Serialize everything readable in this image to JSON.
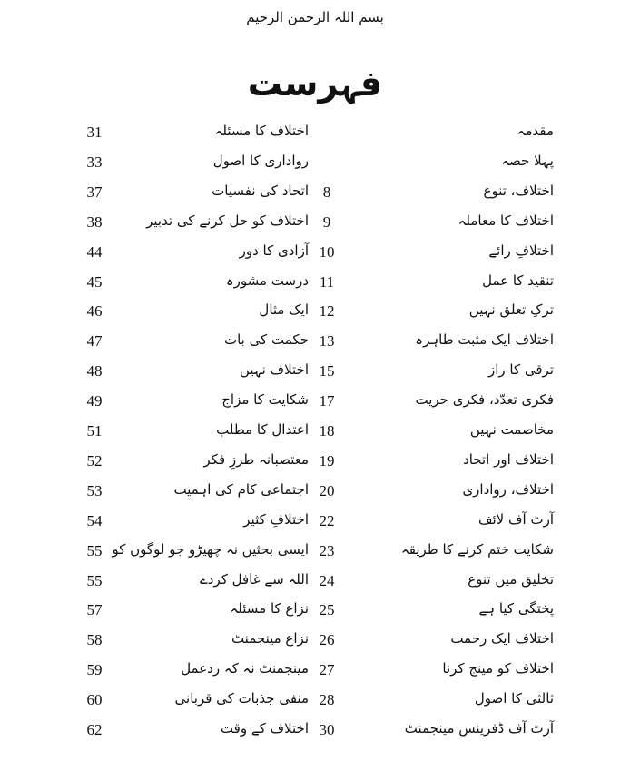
{
  "header": {
    "bismillah": "بسم اللہ الرحمن الرحیم",
    "title": "فہرست"
  },
  "rows": [
    {
      "right_title": "مقدمہ",
      "right_page": "",
      "left_title": "اختلاف کا مسئلہ",
      "left_page": "31"
    },
    {
      "right_title": "پہلا حصہ",
      "right_page": "",
      "left_title": "رواداری کا اصول",
      "left_page": "33"
    },
    {
      "right_title": "اختلاف، تنوع",
      "right_page": "8",
      "left_title": "اتحاد کی نفسیات",
      "left_page": "37"
    },
    {
      "right_title": "اختلاف کا معاملہ",
      "right_page": "9",
      "left_title": "اختلاف کو حل کرنے کی تدبیر",
      "left_page": "38"
    },
    {
      "right_title": "اختلافِ رائے",
      "right_page": "10",
      "left_title": "آزادی کا دور",
      "left_page": "44"
    },
    {
      "right_title": "تنقید کا عمل",
      "right_page": "11",
      "left_title": "درست مشورہ",
      "left_page": "45"
    },
    {
      "right_title": "ترکِ تعلق نہیں",
      "right_page": "12",
      "left_title": "ایک مثال",
      "left_page": "46"
    },
    {
      "right_title": "اختلاف ایک مثبت ظاہرہ",
      "right_page": "13",
      "left_title": "حکمت کی بات",
      "left_page": "47"
    },
    {
      "right_title": "ترقی کا راز",
      "right_page": "15",
      "left_title": "اختلاف نہیں",
      "left_page": "48"
    },
    {
      "right_title": "فکری تعدّد، فکری حریت",
      "right_page": "17",
      "left_title": "شکایت کا مزاج",
      "left_page": "49"
    },
    {
      "right_title": "مخاصمت نہیں",
      "right_page": "18",
      "left_title": "اعتدال کا مطلب",
      "left_page": "51"
    },
    {
      "right_title": "اختلاف اور اتحاد",
      "right_page": "19",
      "left_title": "معتصبانہ طرزِ فکر",
      "left_page": "52"
    },
    {
      "right_title": "اختلاف، رواداری",
      "right_page": "20",
      "left_title": "اجتماعی کام کی اہمیت",
      "left_page": "53"
    },
    {
      "right_title": "آرٹ آف لائف",
      "right_page": "22",
      "left_title": "اختلافِ کثیر",
      "left_page": "54"
    },
    {
      "right_title": "شکایت ختم کرنے کا طریقہ",
      "right_page": "23",
      "left_title": "ایسی بحثیں نہ چھیڑو جو لوگوں کو",
      "left_page": "55"
    },
    {
      "right_title": "تخلیق میں تنوع",
      "right_page": "24",
      "left_title": "اللہ سے غافل کردے",
      "left_page": "55"
    },
    {
      "right_title": "پختگی کیا ہے",
      "right_page": "25",
      "left_title": "نزاع کا مسئلہ",
      "left_page": "57"
    },
    {
      "right_title": "اختلاف ایک رحمت",
      "right_page": "26",
      "left_title": "نزاع مینجمنٹ",
      "left_page": "58"
    },
    {
      "right_title": "اختلاف کو مینج کرنا",
      "right_page": "27",
      "left_title": "مینجمنٹ نہ کہ ردعمل",
      "left_page": "59"
    },
    {
      "right_title": "ثالثی کا اصول",
      "right_page": "28",
      "left_title": "منفی جذبات کی قربانی",
      "left_page": "60"
    },
    {
      "right_title": "آرٹ آف ڈفرینس مینجمنٹ",
      "right_page": "30",
      "left_title": "اختلاف کے وقت",
      "left_page": "62"
    }
  ]
}
